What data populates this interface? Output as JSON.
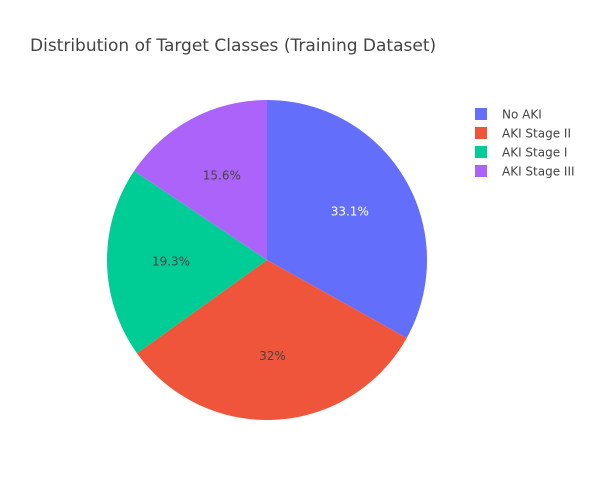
{
  "chart_data": {
    "type": "pie",
    "title": "Distribution of Target Classes (Training Dataset)",
    "labels": [
      "No AKI",
      "AKI Stage II",
      "AKI Stage I",
      "AKI Stage III"
    ],
    "values": [
      33.1,
      32.0,
      19.3,
      15.6
    ],
    "percent_labels": [
      "33.1%",
      "32%",
      "19.3%",
      "15.6%"
    ],
    "colors": [
      "#636efa",
      "#ef553b",
      "#00cc96",
      "#ab63fa"
    ],
    "label_colors": [
      "#ffffff",
      "#444444",
      "#444444",
      "#444444"
    ],
    "direction": "clockwise",
    "start": "12 o'clock",
    "legend_position": "top-right"
  }
}
